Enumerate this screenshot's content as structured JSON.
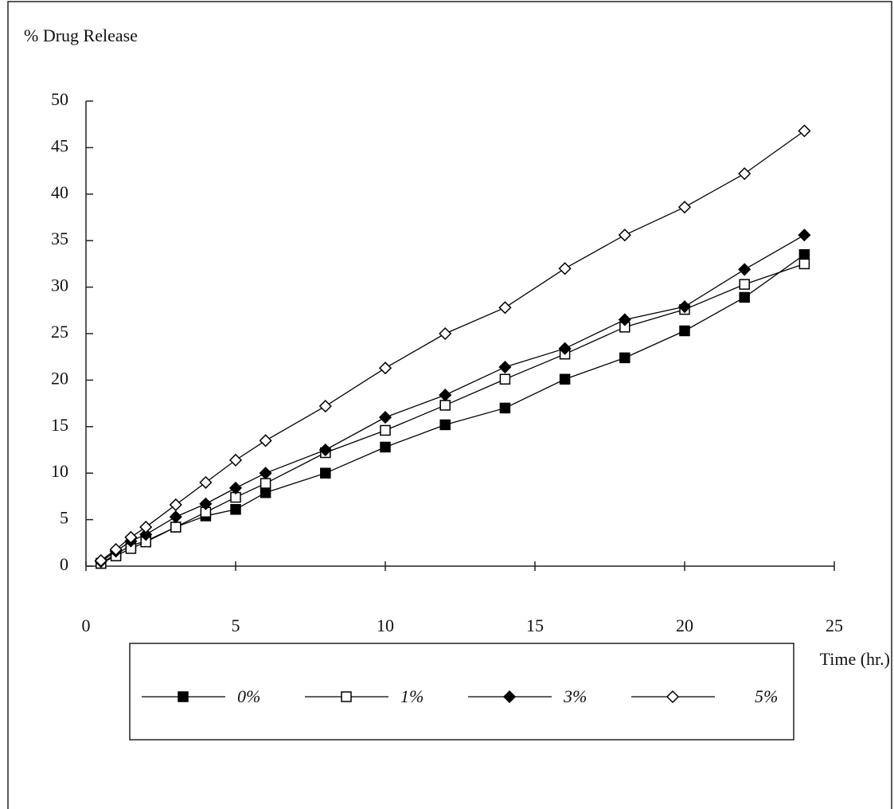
{
  "chart_data": {
    "type": "line",
    "y_label": "% Drug Release",
    "x_label": "Time (hr.)",
    "x": [
      0.5,
      1,
      1.5,
      2,
      3,
      4,
      5,
      6,
      8,
      10,
      12,
      14,
      16,
      18,
      20,
      22,
      24
    ],
    "series": [
      {
        "name": "0%",
        "color": "#000000",
        "marker": "square",
        "marker_fill": "#000000",
        "values": [
          0.3,
          1.3,
          2.2,
          2.7,
          4.2,
          5.4,
          6.1,
          7.9,
          10,
          12.8,
          15.2,
          17,
          20.1,
          22.4,
          25.3,
          28.9,
          33.5
        ]
      },
      {
        "name": "1%",
        "color": "#000000",
        "marker": "square",
        "marker_fill": "#ffffff",
        "values": [
          0.3,
          1.1,
          1.9,
          2.6,
          4.2,
          5.8,
          7.4,
          8.9,
          12.2,
          14.6,
          17.3,
          20.1,
          22.8,
          25.7,
          27.6,
          30.3,
          32.5
        ]
      },
      {
        "name": "3%",
        "color": "#000000",
        "marker": "diamond",
        "marker_fill": "#000000",
        "values": [
          0.5,
          1.6,
          2.7,
          3.4,
          5.3,
          6.7,
          8.4,
          10,
          12.5,
          16,
          18.4,
          21.4,
          23.4,
          26.5,
          27.9,
          31.9,
          35.6
        ]
      },
      {
        "name": "5%",
        "color": "#000000",
        "marker": "diamond",
        "marker_fill": "#ffffff",
        "values": [
          0.6,
          1.8,
          3.1,
          4.2,
          6.6,
          9,
          11.4,
          13.5,
          17.2,
          21.3,
          25,
          27.8,
          32,
          35.6,
          38.6,
          42.2,
          46.8
        ]
      }
    ],
    "xlim": [
      0,
      25
    ],
    "xticks": [
      0,
      5,
      10,
      15,
      20,
      25
    ],
    "ylim": [
      0,
      50
    ],
    "yticks": [
      0,
      5,
      10,
      15,
      20,
      25,
      30,
      35,
      40,
      45,
      50
    ],
    "grid": false,
    "legend": "bottom"
  }
}
